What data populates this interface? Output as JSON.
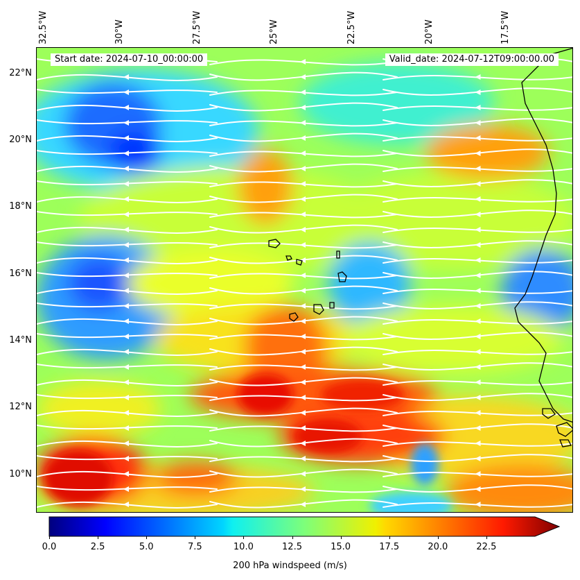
{
  "map": {
    "start_date": "Start date: 2024-07-10_00:00:00",
    "valid_date": "Valid_date: 2024-07-12T09:00:00.00",
    "lon_labels": [
      "32.5°W",
      "30°W",
      "27.5°W",
      "25°W",
      "22.5°W",
      "20°W",
      "17.5°W"
    ],
    "lat_labels": [
      "22°N",
      "20°N",
      "18°N",
      "16°N",
      "14°N",
      "12°N",
      "10°N"
    ],
    "colorbar": {
      "label": "200 hPa windspeed (m/s)",
      "ticks": [
        "0.0",
        "2.5",
        "5.0",
        "7.5",
        "10.0",
        "12.5",
        "15.0",
        "17.5",
        "20.0",
        "22.5"
      ],
      "colormap": "jet",
      "range": [
        0,
        25
      ]
    },
    "colors": {
      "streamline": "#ffffff",
      "coastline": "#000000"
    }
  }
}
